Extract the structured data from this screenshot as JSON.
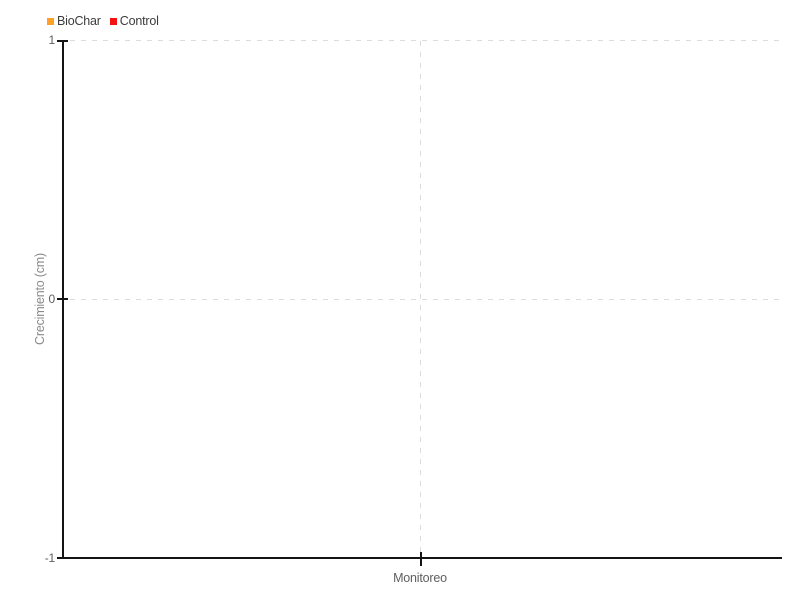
{
  "chart_data": {
    "type": "line",
    "categories": [
      "Monitoreo"
    ],
    "series": [
      {
        "name": "BioChar",
        "color": "#ffa127",
        "values": []
      },
      {
        "name": "Control",
        "color": "#f31111",
        "values": []
      }
    ],
    "title": "",
    "xlabel": "",
    "ylabel": "Crecimiento (cm)",
    "ylim": [
      -1,
      1
    ],
    "yticks": [
      1,
      0,
      -1
    ],
    "grid": true,
    "legend_position": "top-left"
  },
  "legend": {
    "items": [
      {
        "label": "BioChar",
        "color": "#ffa127"
      },
      {
        "label": "Control",
        "color": "#f31111"
      }
    ]
  },
  "y_axis": {
    "title": "Crecimiento (cm)",
    "ticks": {
      "top": "1",
      "mid": "0",
      "bottom": "-1"
    }
  },
  "x_axis": {
    "ticks": {
      "center": "Monitoreo"
    }
  }
}
